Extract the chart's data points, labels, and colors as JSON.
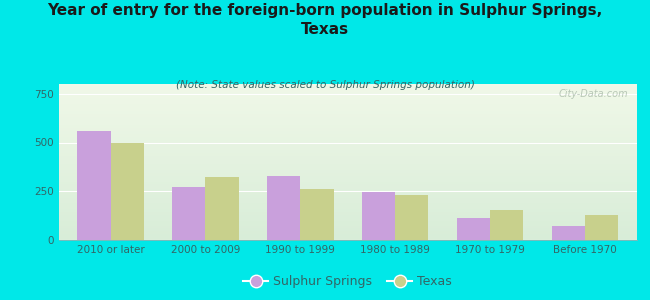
{
  "title": "Year of entry for the foreign-born population in Sulphur Springs,\nTexas",
  "subtitle": "(Note: State values scaled to Sulphur Springs population)",
  "categories": [
    "2010 or later",
    "2000 to 2009",
    "1990 to 1999",
    "1980 to 1989",
    "1970 to 1979",
    "Before 1970"
  ],
  "sulphur_springs": [
    560,
    270,
    330,
    245,
    115,
    70
  ],
  "texas": [
    495,
    325,
    260,
    230,
    155,
    130
  ],
  "bar_color_ss": "#c9a0dc",
  "bar_color_tx": "#c8d08c",
  "background_color": "#00e8e8",
  "ylim": [
    0,
    800
  ],
  "yticks": [
    0,
    250,
    500,
    750
  ],
  "legend_ss": "Sulphur Springs",
  "legend_tx": "Texas",
  "title_fontsize": 11,
  "subtitle_fontsize": 7.5,
  "tick_fontsize": 7.5,
  "watermark": "City-Data.com"
}
